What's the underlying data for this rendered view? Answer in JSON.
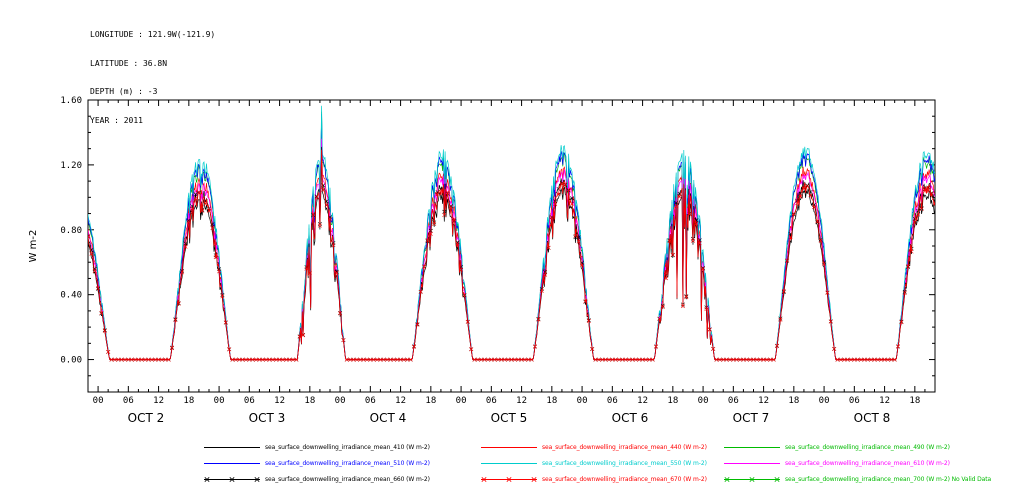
{
  "header": {
    "longitude": "LONGITUDE : 121.9W(-121.9)",
    "latitude": "LATITUDE : 36.8N",
    "depth": "DEPTH (m) : -3",
    "year": "YEAR : 2011"
  },
  "chart_data": {
    "type": "line",
    "title": "",
    "ylabel": "W m-2",
    "ylim": [
      -0.2,
      1.6
    ],
    "yticks": [
      0.0,
      0.4,
      0.8,
      1.2,
      1.6
    ],
    "ytick_labels": [
      "0.00",
      "0.40",
      "0.80",
      "1.20",
      "1.60"
    ],
    "y_minor_step": 0.1,
    "x_hours_start": -2,
    "x_hours_end": 166,
    "xtick_step": 6,
    "x_minor_step": 2,
    "xtick_labels_cycle": [
      "00",
      "06",
      "12",
      "18"
    ],
    "day_labels": [
      "OCT 2",
      "OCT 3",
      "OCT 4",
      "OCT 5",
      "OCT 6",
      "OCT 7",
      "OCT 8"
    ],
    "day_label_center_hour": 9.5,
    "grid": false,
    "legend_position": "bottom",
    "diurnal": {
      "center_hour": 20.3,
      "half_width_hours": 6.0,
      "shape_exponent": 1.1,
      "sample_minutes": 10
    },
    "prev_day_tail": {
      "peak": 1.0
    },
    "days": [
      {
        "date": "OCT 2",
        "peak": 1.24,
        "noise": 0.14
      },
      {
        "date": "OCT 3",
        "peak": 1.25,
        "noise": 0.3,
        "spike": 1.57,
        "width_scale": 0.8
      },
      {
        "date": "OCT 4",
        "peak": 1.27,
        "noise": 0.18
      },
      {
        "date": "OCT 5",
        "peak": 1.3,
        "noise": 0.17
      },
      {
        "date": "OCT 6",
        "peak": 1.27,
        "noise": 0.25
      },
      {
        "date": "OCT 7",
        "peak": 1.3,
        "noise": 0.04
      },
      {
        "date": "OCT 8",
        "peak": 1.28,
        "noise": 0.1
      }
    ],
    "series": [
      {
        "name": "sea_surface_downwelling_irradiance_mean_410",
        "units": "W m-2",
        "legend_label": "sea_surface_downwelling_irradiance_mean_410 (W m-2)",
        "color": "#000000",
        "scale": 0.8,
        "marker": "none"
      },
      {
        "name": "sea_surface_downwelling_irradiance_mean_440",
        "units": "W m-2",
        "legend_label": "sea_surface_downwelling_irradiance_mean_440 (W m-2)",
        "color": "#ff0000",
        "scale": 0.9,
        "marker": "none"
      },
      {
        "name": "sea_surface_downwelling_irradiance_mean_490",
        "units": "W m-2",
        "legend_label": "sea_surface_downwelling_irradiance_mean_490 (W m-2)",
        "color": "#00bb00",
        "scale": 0.96,
        "marker": "none"
      },
      {
        "name": "sea_surface_downwelling_irradiance_mean_510",
        "units": "W m-2",
        "legend_label": "sea_surface_downwelling_irradiance_mean_510 (W m-2)",
        "color": "#0000ff",
        "scale": 0.97,
        "marker": "none"
      },
      {
        "name": "sea_surface_downwelling_irradiance_mean_550",
        "units": "W m-2",
        "legend_label": "sea_surface_downwelling_irradiance_mean_550 (W m-2)",
        "color": "#00cccc",
        "scale": 1.0,
        "marker": "none"
      },
      {
        "name": "sea_surface_downwelling_irradiance_mean_610",
        "units": "W m-2",
        "legend_label": "sea_surface_downwelling_irradiance_mean_610 (W m-2)",
        "color": "#ff00ff",
        "scale": 0.88,
        "marker": "none"
      },
      {
        "name": "sea_surface_downwelling_irradiance_mean_660",
        "units": "W m-2",
        "legend_label": "sea_surface_downwelling_irradiance_mean_660 (W m-2)",
        "color": "#000000",
        "scale": 0.84,
        "marker": "x"
      },
      {
        "name": "sea_surface_downwelling_irradiance_mean_670",
        "units": "W m-2",
        "legend_label": "sea_surface_downwelling_irradiance_mean_670 (W m-2)",
        "color": "#ff0000",
        "scale": 0.83,
        "marker": "x"
      },
      {
        "name": "sea_surface_downwelling_irradiance_mean_700",
        "units": "W m-2",
        "legend_label": "sea_surface_downwelling_irradiance_mean_700 (W m-2) No Valid Data",
        "color": "#00bb00",
        "scale": 0.0,
        "marker": "x",
        "note": "No Valid Data",
        "no_data": true
      }
    ]
  }
}
